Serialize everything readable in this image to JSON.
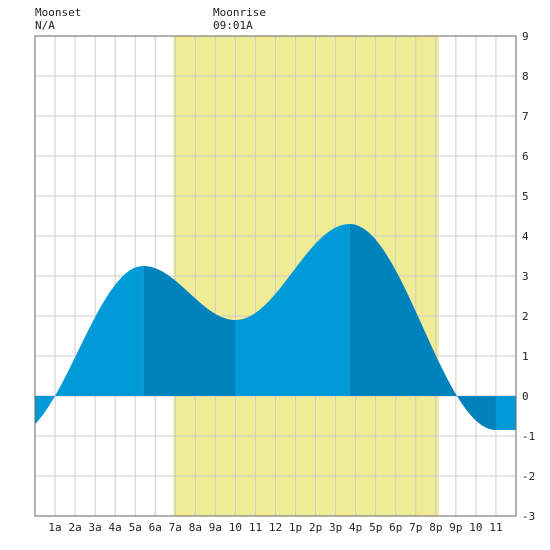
{
  "header": {
    "moonset_label": "Moonset",
    "moonset_value": "N/A",
    "moonrise_label": "Moonrise",
    "moonrise_value": "09:01A"
  },
  "colors": {
    "background": "#ffffff",
    "grid": "#cccccc",
    "daylight": "#f0ec96",
    "tide_light": "#009ad9",
    "tide_dark": "#0082bd",
    "border": "#666666"
  },
  "chart_data": {
    "type": "area",
    "title": "",
    "xlabel": "",
    "ylabel": "",
    "xlim": [
      0,
      24
    ],
    "ylim": [
      -3,
      9
    ],
    "x_ticks": [
      {
        "h": 1,
        "label": "1a"
      },
      {
        "h": 2,
        "label": "2a"
      },
      {
        "h": 3,
        "label": "3a"
      },
      {
        "h": 4,
        "label": "4a"
      },
      {
        "h": 5,
        "label": "5a"
      },
      {
        "h": 6,
        "label": "6a"
      },
      {
        "h": 7,
        "label": "7a"
      },
      {
        "h": 8,
        "label": "8a"
      },
      {
        "h": 9,
        "label": "9a"
      },
      {
        "h": 10,
        "label": "10"
      },
      {
        "h": 11,
        "label": "11"
      },
      {
        "h": 12,
        "label": "12"
      },
      {
        "h": 13,
        "label": "1p"
      },
      {
        "h": 14,
        "label": "2p"
      },
      {
        "h": 15,
        "label": "3p"
      },
      {
        "h": 16,
        "label": "4p"
      },
      {
        "h": 17,
        "label": "5p"
      },
      {
        "h": 18,
        "label": "6p"
      },
      {
        "h": 19,
        "label": "7p"
      },
      {
        "h": 20,
        "label": "8p"
      },
      {
        "h": 21,
        "label": "9p"
      },
      {
        "h": 22,
        "label": "10"
      },
      {
        "h": 23,
        "label": "11"
      }
    ],
    "y_ticks": [
      "-3",
      "-2",
      "-1",
      "0",
      "1",
      "2",
      "3",
      "4",
      "5",
      "6",
      "7",
      "8",
      "9"
    ],
    "daylight": {
      "start": 6.9,
      "end": 20.15
    },
    "moonrise_hour": 9.02,
    "tide_extremes": [
      {
        "hour": -1.1,
        "height": -1.0
      },
      {
        "hour": 5.4,
        "height": 3.25
      },
      {
        "hour": 10.0,
        "height": 1.9
      },
      {
        "hour": 15.7,
        "height": 4.3
      },
      {
        "hour": 23.0,
        "height": -0.85
      }
    ]
  }
}
